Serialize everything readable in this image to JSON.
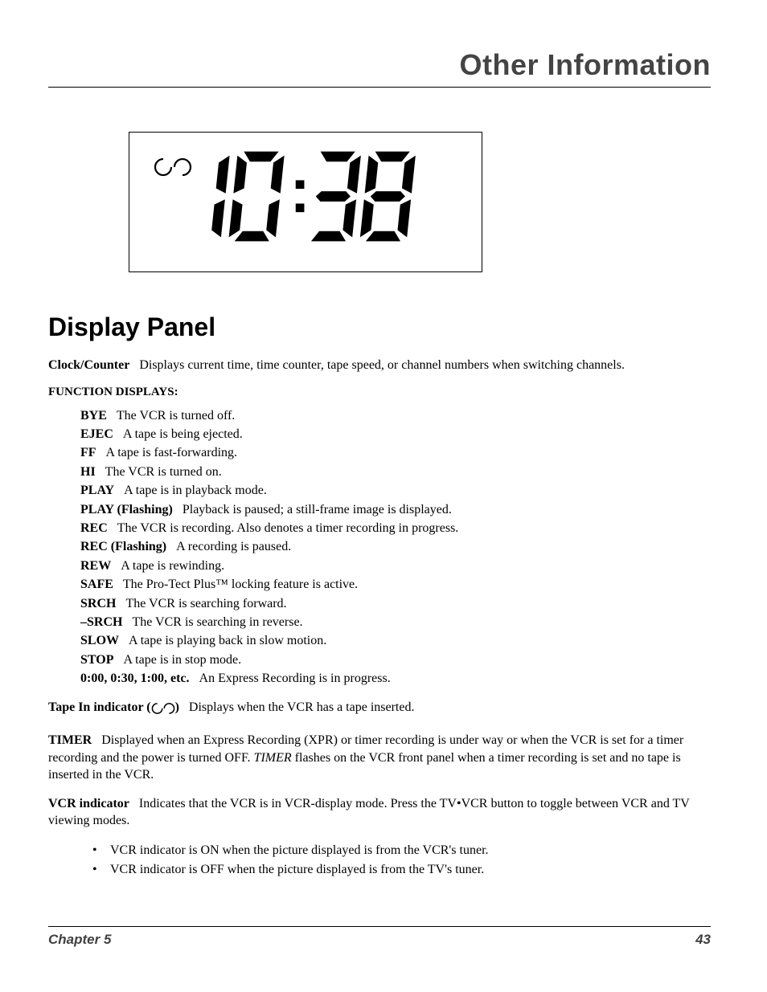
{
  "header": {
    "title": "Other Information"
  },
  "display": {
    "time": "10:38",
    "tape_indicator": true
  },
  "section": {
    "title": "Display Panel",
    "clock_counter": {
      "term": "Clock/Counter",
      "desc": "Displays current time, time counter, tape speed, or channel numbers when switching channels."
    },
    "functions_heading": "FUNCTION DISPLAYS:",
    "functions": [
      {
        "term": "BYE",
        "desc": "The VCR is turned off."
      },
      {
        "term": "EJEC",
        "desc": "A tape is being ejected."
      },
      {
        "term": "FF",
        "desc": "A tape is fast-forwarding."
      },
      {
        "term": "HI",
        "desc": "The VCR is turned on."
      },
      {
        "term": "PLAY",
        "desc": "A tape is in playback mode."
      },
      {
        "term": "PLAY (Flashing)",
        "desc": "Playback is paused; a still-frame image is displayed."
      },
      {
        "term": "REC",
        "desc": "The VCR is recording. Also denotes a timer recording in progress."
      },
      {
        "term": "REC (Flashing)",
        "desc": "A recording is paused."
      },
      {
        "term": "REW",
        "desc": "A tape is rewinding."
      },
      {
        "term": "SAFE",
        "desc": "The Pro-Tect Plus™ locking feature is active."
      },
      {
        "term": "SRCH",
        "desc": "The VCR is searching forward."
      },
      {
        "term": "–SRCH",
        "desc": "The VCR is searching in reverse."
      },
      {
        "term": "SLOW",
        "desc": "A tape is playing back in slow motion."
      },
      {
        "term": "STOP",
        "desc": "A tape is in stop mode."
      },
      {
        "term": "0:00, 0:30, 1:00, etc.",
        "desc": "An Express Recording is in progress."
      }
    ],
    "tape_in": {
      "term_pre": "Tape In indicator (",
      "term_post": ")",
      "desc": "Displays when the VCR has a tape inserted."
    },
    "timer": {
      "term": "TIMER",
      "desc_pre": "Displayed when an Express Recording (XPR) or timer recording is under way or when the VCR is set for a timer recording and the power is turned OFF. ",
      "italic": "TIMER",
      "desc_post": " flashes on the VCR front panel when a timer recording is set and no tape is inserted in the VCR."
    },
    "vcr_indicator": {
      "term": "VCR indicator",
      "desc": "Indicates that the VCR is in VCR-display mode. Press the TV•VCR button to toggle between VCR and TV viewing modes.",
      "bullets": [
        "VCR indicator is ON when the picture displayed is from the VCR's tuner.",
        "VCR indicator is OFF when the picture displayed is from the TV's tuner."
      ]
    }
  },
  "footer": {
    "chapter": "Chapter 5",
    "page": "43"
  },
  "style": {
    "digit_stroke": 13,
    "digit_height": 115,
    "digit_width": 60,
    "digit_gap": 10,
    "colon_gap": 18
  }
}
